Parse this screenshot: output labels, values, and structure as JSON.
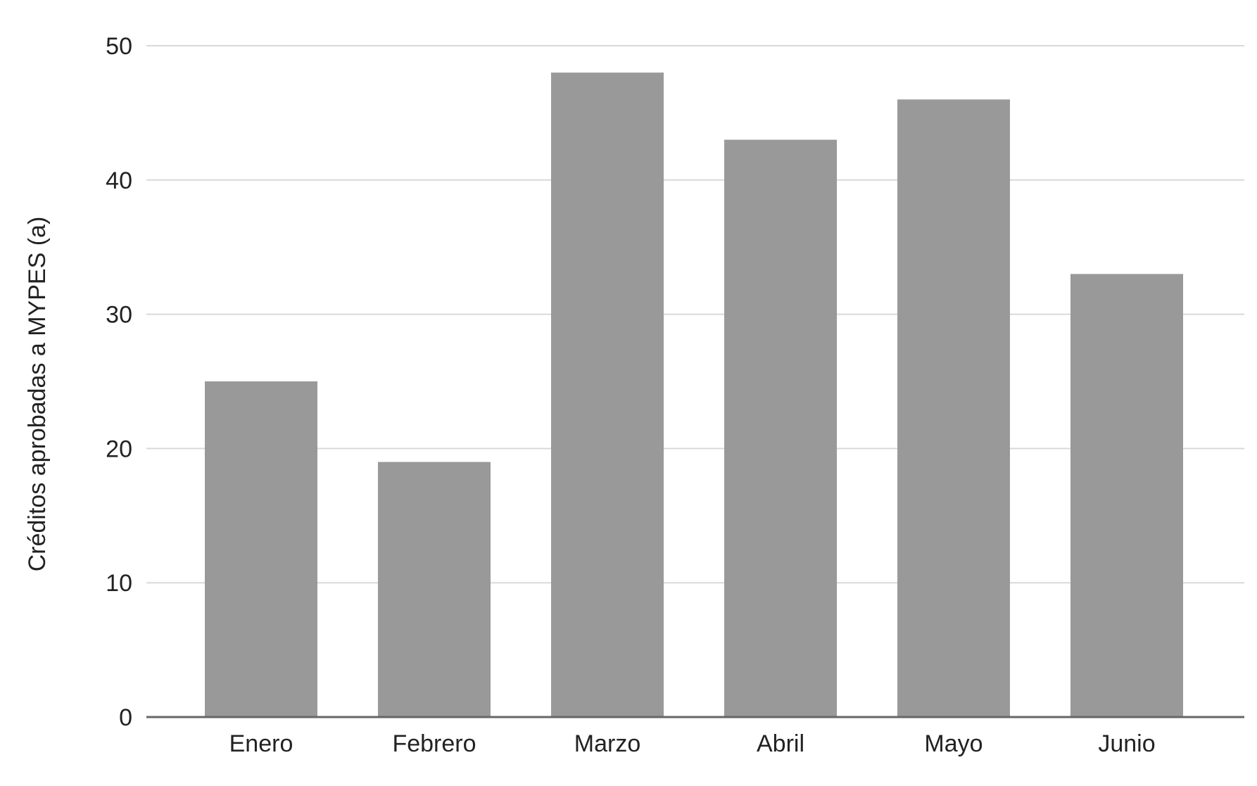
{
  "chart_data": {
    "type": "bar",
    "title": "",
    "xlabel": "",
    "ylabel": "Créditos aprobadas a MYPES (a)",
    "categories": [
      "Enero",
      "Febrero",
      "Marzo",
      "Abril",
      "Mayo",
      "Junio"
    ],
    "values": [
      25,
      19,
      48,
      43,
      46,
      33
    ],
    "ylim": [
      0,
      50
    ],
    "yticks": [
      0,
      10,
      20,
      30,
      40,
      50
    ],
    "grid": true,
    "legend": "none",
    "bar_color": "#999999"
  }
}
